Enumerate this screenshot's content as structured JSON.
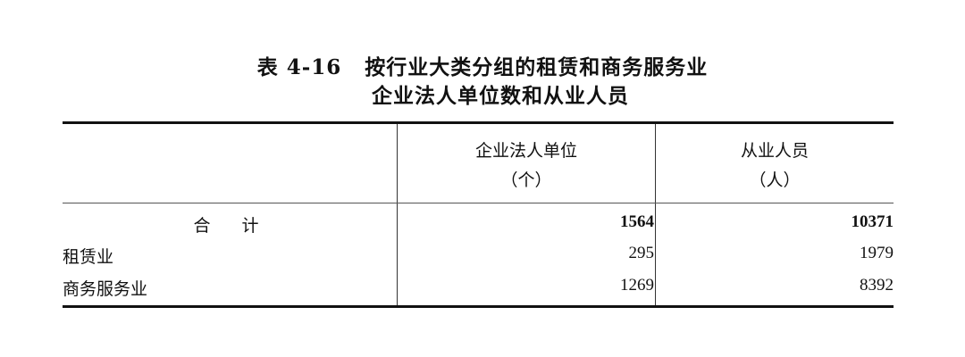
{
  "title": {
    "number": "表 4-16",
    "line1": "按行业大类分组的租赁和商务服务业",
    "line2": "企业法人单位数和从业人员"
  },
  "table": {
    "columns": [
      {
        "label": "企业法人单位",
        "unit": "（个）"
      },
      {
        "label": "从业人员",
        "unit": "（人）"
      }
    ],
    "rows": [
      {
        "label": "合　计",
        "values": [
          "1564",
          "10371"
        ],
        "bold": true
      },
      {
        "label": "租赁业",
        "values": [
          "295",
          "1979"
        ]
      },
      {
        "label": "商务服务业",
        "values": [
          "1269",
          "8392"
        ]
      }
    ]
  }
}
